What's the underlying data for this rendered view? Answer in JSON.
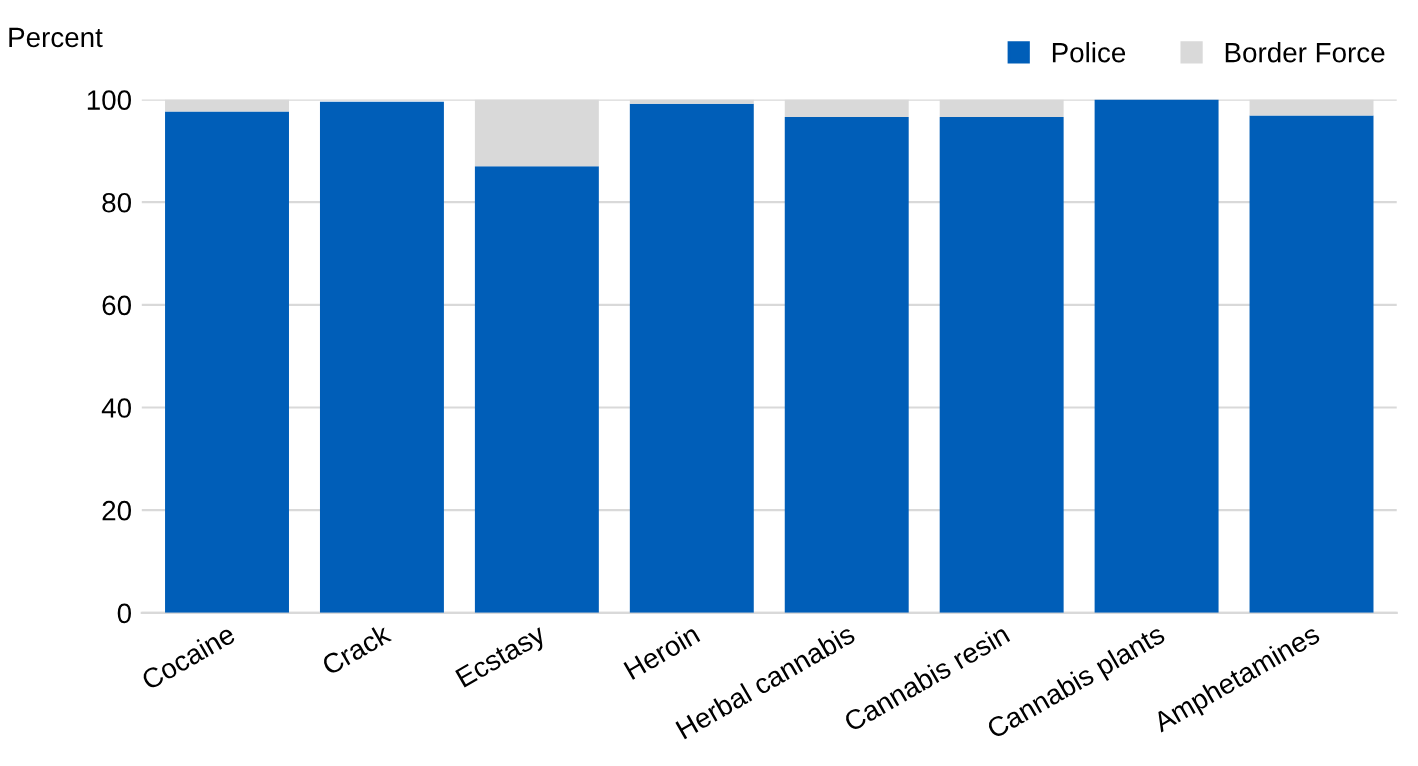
{
  "chart_data": {
    "type": "bar",
    "stacked": true,
    "ylabel": "Percent",
    "categories": [
      "Cocaine",
      "Crack",
      "Ecstasy",
      "Heroin",
      "Herbal cannabis",
      "Cannabis resin",
      "Cannabis plants",
      "Amphetamines"
    ],
    "series": [
      {
        "name": "Police",
        "color": "#005eb8",
        "values": [
          97.7,
          99.6,
          87,
          99.2,
          96.6,
          96.6,
          100,
          96.9
        ]
      },
      {
        "name": "Border Force",
        "color": "#d9d9d9",
        "values": [
          2.3,
          null,
          13,
          0.8,
          3.4,
          3.4,
          0,
          3.1
        ]
      }
    ],
    "ylim": [
      0,
      100
    ],
    "yticks": [
      0,
      20,
      40,
      60,
      80,
      100
    ],
    "grid": "y",
    "legend": "top right"
  }
}
